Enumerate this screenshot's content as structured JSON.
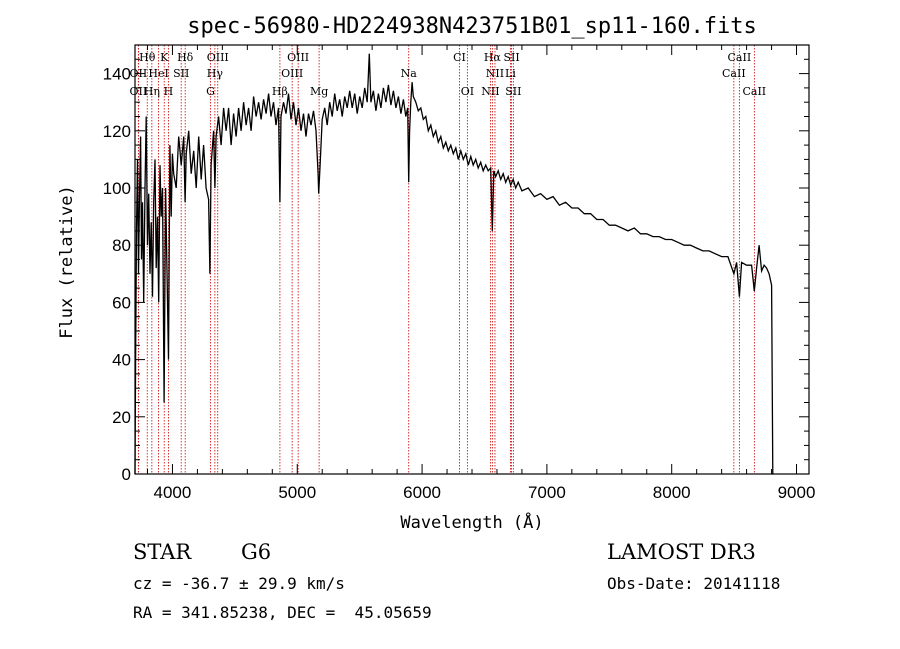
{
  "chart_data": {
    "type": "line",
    "title": "spec-56980-HD224938N423751B01_sp11-160.fits",
    "xlabel": "Wavelength (Å)",
    "ylabel": "Flux (relative)",
    "xlim": [
      3700,
      9100
    ],
    "ylim": [
      0,
      150
    ],
    "xticks": [
      4000,
      5000,
      6000,
      7000,
      8000,
      9000
    ],
    "yticks": [
      0,
      20,
      40,
      60,
      80,
      100,
      120,
      140
    ],
    "series": [
      {
        "name": "flux",
        "points": [
          [
            3700,
            0
          ],
          [
            3705,
            40
          ],
          [
            3712,
            85
          ],
          [
            3720,
            110
          ],
          [
            3728,
            70
          ],
          [
            3735,
            95
          ],
          [
            3745,
            118
          ],
          [
            3752,
            75
          ],
          [
            3760,
            95
          ],
          [
            3770,
            60
          ],
          [
            3780,
            100
          ],
          [
            3790,
            125
          ],
          [
            3800,
            80
          ],
          [
            3810,
            98
          ],
          [
            3820,
            70
          ],
          [
            3830,
            88
          ],
          [
            3840,
            62
          ],
          [
            3850,
            95
          ],
          [
            3860,
            110
          ],
          [
            3870,
            72
          ],
          [
            3880,
            90
          ],
          [
            3890,
            60
          ],
          [
            3900,
            108
          ],
          [
            3910,
            90
          ],
          [
            3920,
            100
          ],
          [
            3933,
            25
          ],
          [
            3945,
            100
          ],
          [
            3955,
            75
          ],
          [
            3968,
            40
          ],
          [
            3980,
            115
          ],
          [
            3990,
            90
          ],
          [
            4000,
            112
          ],
          [
            4010,
            105
          ],
          [
            4030,
            100
          ],
          [
            4050,
            118
          ],
          [
            4070,
            108
          ],
          [
            4090,
            118
          ],
          [
            4101,
            95
          ],
          [
            4110,
            112
          ],
          [
            4130,
            120
          ],
          [
            4150,
            105
          ],
          [
            4170,
            113
          ],
          [
            4190,
            100
          ],
          [
            4210,
            118
          ],
          [
            4230,
            103
          ],
          [
            4250,
            115
          ],
          [
            4270,
            100
          ],
          [
            4290,
            96
          ],
          [
            4300,
            70
          ],
          [
            4310,
            108
          ],
          [
            4330,
            120
          ],
          [
            4340,
            100
          ],
          [
            4350,
            118
          ],
          [
            4370,
            125
          ],
          [
            4390,
            115
          ],
          [
            4410,
            128
          ],
          [
            4430,
            120
          ],
          [
            4450,
            128
          ],
          [
            4470,
            115
          ],
          [
            4490,
            126
          ],
          [
            4510,
            118
          ],
          [
            4530,
            128
          ],
          [
            4550,
            120
          ],
          [
            4570,
            130
          ],
          [
            4590,
            122
          ],
          [
            4610,
            128
          ],
          [
            4630,
            120
          ],
          [
            4650,
            132
          ],
          [
            4670,
            125
          ],
          [
            4690,
            130
          ],
          [
            4710,
            124
          ],
          [
            4730,
            131
          ],
          [
            4750,
            126
          ],
          [
            4770,
            133
          ],
          [
            4790,
            125
          ],
          [
            4810,
            130
          ],
          [
            4830,
            122
          ],
          [
            4850,
            128
          ],
          [
            4861,
            95
          ],
          [
            4870,
            125
          ],
          [
            4890,
            130
          ],
          [
            4910,
            126
          ],
          [
            4930,
            133
          ],
          [
            4950,
            124
          ],
          [
            4970,
            130
          ],
          [
            4990,
            122
          ],
          [
            5010,
            128
          ],
          [
            5030,
            120
          ],
          [
            5050,
            126
          ],
          [
            5070,
            118
          ],
          [
            5090,
            126
          ],
          [
            5110,
            122
          ],
          [
            5130,
            127
          ],
          [
            5150,
            120
          ],
          [
            5167,
            105
          ],
          [
            5172,
            98
          ],
          [
            5183,
            108
          ],
          [
            5200,
            124
          ],
          [
            5220,
            128
          ],
          [
            5240,
            122
          ],
          [
            5260,
            130
          ],
          [
            5280,
            125
          ],
          [
            5300,
            133
          ],
          [
            5320,
            127
          ],
          [
            5340,
            131
          ],
          [
            5360,
            125
          ],
          [
            5380,
            132
          ],
          [
            5400,
            128
          ],
          [
            5420,
            134
          ],
          [
            5440,
            128
          ],
          [
            5460,
            133
          ],
          [
            5480,
            126
          ],
          [
            5500,
            132
          ],
          [
            5520,
            128
          ],
          [
            5540,
            135
          ],
          [
            5560,
            130
          ],
          [
            5577,
            147
          ],
          [
            5590,
            130
          ],
          [
            5610,
            134
          ],
          [
            5630,
            127
          ],
          [
            5650,
            133
          ],
          [
            5670,
            128
          ],
          [
            5690,
            135
          ],
          [
            5710,
            130
          ],
          [
            5730,
            136
          ],
          [
            5750,
            129
          ],
          [
            5770,
            134
          ],
          [
            5790,
            128
          ],
          [
            5810,
            132
          ],
          [
            5830,
            126
          ],
          [
            5850,
            131
          ],
          [
            5870,
            125
          ],
          [
            5885,
            128
          ],
          [
            5893,
            102
          ],
          [
            5900,
            120
          ],
          [
            5910,
            130
          ],
          [
            5920,
            137
          ],
          [
            5930,
            132
          ],
          [
            5950,
            130
          ],
          [
            5970,
            127
          ],
          [
            5990,
            128
          ],
          [
            6010,
            124
          ],
          [
            6030,
            125
          ],
          [
            6050,
            120
          ],
          [
            6070,
            122
          ],
          [
            6090,
            118
          ],
          [
            6110,
            120
          ],
          [
            6130,
            116
          ],
          [
            6150,
            118
          ],
          [
            6170,
            114
          ],
          [
            6190,
            116
          ],
          [
            6210,
            113
          ],
          [
            6230,
            115
          ],
          [
            6250,
            112
          ],
          [
            6270,
            114
          ],
          [
            6290,
            110
          ],
          [
            6310,
            113
          ],
          [
            6330,
            110
          ],
          [
            6350,
            112
          ],
          [
            6370,
            108
          ],
          [
            6390,
            111
          ],
          [
            6410,
            108
          ],
          [
            6430,
            110
          ],
          [
            6450,
            107
          ],
          [
            6470,
            109
          ],
          [
            6490,
            106
          ],
          [
            6510,
            108
          ],
          [
            6530,
            106
          ],
          [
            6550,
            107
          ],
          [
            6563,
            85
          ],
          [
            6575,
            106
          ],
          [
            6590,
            104
          ],
          [
            6610,
            106
          ],
          [
            6630,
            103
          ],
          [
            6650,
            105
          ],
          [
            6670,
            102
          ],
          [
            6690,
            104
          ],
          [
            6710,
            101
          ],
          [
            6730,
            103
          ],
          [
            6750,
            100
          ],
          [
            6770,
            102
          ],
          [
            6800,
            99
          ],
          [
            6850,
            100
          ],
          [
            6900,
            97
          ],
          [
            6950,
            98
          ],
          [
            7000,
            96
          ],
          [
            7050,
            97
          ],
          [
            7100,
            94
          ],
          [
            7150,
            95
          ],
          [
            7200,
            93
          ],
          [
            7250,
            93
          ],
          [
            7300,
            91
          ],
          [
            7350,
            91
          ],
          [
            7400,
            89
          ],
          [
            7450,
            89
          ],
          [
            7500,
            87
          ],
          [
            7550,
            87
          ],
          [
            7600,
            86
          ],
          [
            7650,
            85
          ],
          [
            7700,
            86
          ],
          [
            7750,
            84
          ],
          [
            7800,
            84
          ],
          [
            7850,
            83
          ],
          [
            7900,
            83
          ],
          [
            7950,
            82
          ],
          [
            8000,
            82
          ],
          [
            8050,
            81
          ],
          [
            8100,
            80
          ],
          [
            8150,
            80
          ],
          [
            8200,
            79
          ],
          [
            8250,
            78
          ],
          [
            8300,
            78
          ],
          [
            8350,
            77
          ],
          [
            8400,
            76
          ],
          [
            8450,
            76
          ],
          [
            8498,
            70
          ],
          [
            8520,
            74
          ],
          [
            8542,
            62
          ],
          [
            8560,
            74
          ],
          [
            8600,
            73
          ],
          [
            8640,
            73
          ],
          [
            8662,
            64
          ],
          [
            8680,
            72
          ],
          [
            8700,
            80
          ],
          [
            8720,
            71
          ],
          [
            8740,
            73
          ],
          [
            8760,
            72
          ],
          [
            8780,
            70
          ],
          [
            8800,
            66
          ],
          [
            8810,
            0
          ],
          [
            8815,
            0
          ]
        ]
      }
    ],
    "line_color": "#000000",
    "marker_color": "#cc0000",
    "spectral_lines": [
      {
        "label": "Hθ",
        "x": 3798,
        "row": 0
      },
      {
        "label": "K",
        "x": 3934,
        "row": 0
      },
      {
        "label": "Hδ",
        "x": 4102,
        "row": 0
      },
      {
        "label": "OIII",
        "x": 4363,
        "row": 0
      },
      {
        "label": "OIII",
        "x": 5007,
        "row": 0
      },
      {
        "label": "CI",
        "x": 6300,
        "row": 0
      },
      {
        "label": "Hα",
        "x": 6563,
        "row": 0
      },
      {
        "label": "SII",
        "x": 6717,
        "row": 0
      },
      {
        "label": "CaII",
        "x": 8542,
        "row": 0
      },
      {
        "label": "OII",
        "x": 3727,
        "row": 1
      },
      {
        "label": "HeI",
        "x": 3889,
        "row": 1
      },
      {
        "label": "SII",
        "x": 4070,
        "row": 1
      },
      {
        "label": "Hγ",
        "x": 4340,
        "row": 1
      },
      {
        "label": "OIII",
        "x": 4959,
        "row": 1
      },
      {
        "label": "Na",
        "x": 5893,
        "row": 1
      },
      {
        "label": "NII",
        "x": 6584,
        "row": 1
      },
      {
        "label": "Li",
        "x": 6708,
        "row": 1
      },
      {
        "label": "CaII",
        "x": 8498,
        "row": 1
      },
      {
        "label": "OII",
        "x": 3727,
        "row": 2
      },
      {
        "label": "Hη",
        "x": 3835,
        "row": 2
      },
      {
        "label": "H",
        "x": 3968,
        "row": 2
      },
      {
        "label": "G",
        "x": 4305,
        "row": 2
      },
      {
        "label": "Hβ",
        "x": 4861,
        "row": 2
      },
      {
        "label": "Mg",
        "x": 5175,
        "row": 2
      },
      {
        "label": "OI",
        "x": 6363,
        "row": 2
      },
      {
        "label": "NII",
        "x": 6548,
        "row": 2
      },
      {
        "label": "SII",
        "x": 6731,
        "row": 2
      },
      {
        "label": "CaII",
        "x": 8662,
        "row": 2
      }
    ]
  },
  "info": {
    "object_class": "STAR",
    "subclass": "G6",
    "survey": "LAMOST DR3",
    "redshift": "cz = -36.7 ± 29.9 km/s",
    "obs_date": "Obs-Date: 20141118",
    "coordinates": "RA = 341.85238, DEC =  45.05659"
  }
}
